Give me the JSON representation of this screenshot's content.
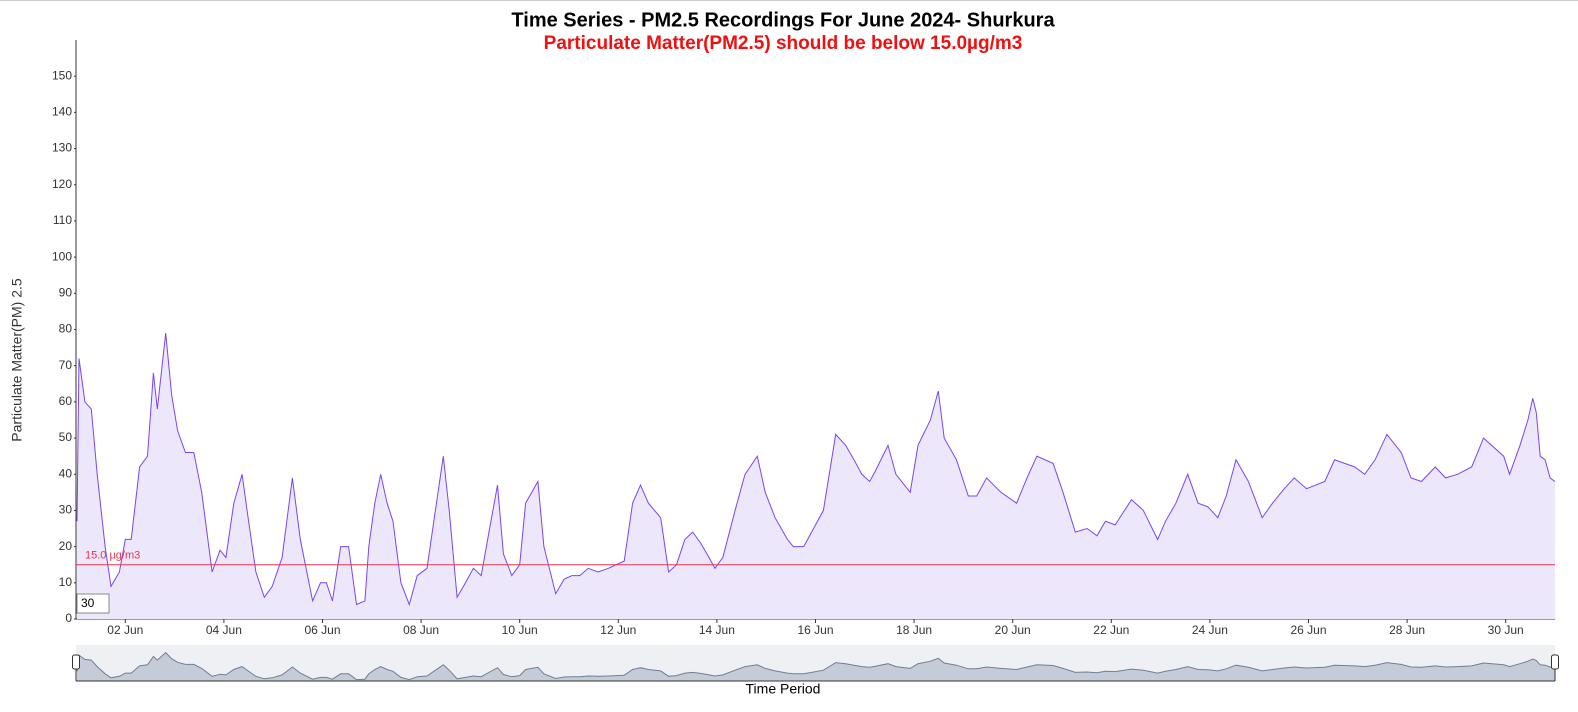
{
  "chart_data": {
    "type": "area",
    "title": "Time Series - PM2.5 Recordings For June 2024- Shurkura",
    "subtitle": "Particulate Matter(PM2.5) should be below 15.0µg/m3",
    "x_label": "Time Period",
    "y_label": "Particulate Matter(PM) 2.5",
    "zoom_input": "30",
    "threshold": {
      "value": 15,
      "label": "15.0 µg/m3",
      "color": "#e8344e"
    },
    "xlim": [
      1,
      31
    ],
    "xticks": [
      {
        "value": 2,
        "label": "02 Jun"
      },
      {
        "value": 4,
        "label": "04 Jun"
      },
      {
        "value": 6,
        "label": "06 Jun"
      },
      {
        "value": 8,
        "label": "08 Jun"
      },
      {
        "value": 10,
        "label": "10 Jun"
      },
      {
        "value": 12,
        "label": "12 Jun"
      },
      {
        "value": 14,
        "label": "14 Jun"
      },
      {
        "value": 16,
        "label": "16 Jun"
      },
      {
        "value": 18,
        "label": "18 Jun"
      },
      {
        "value": 20,
        "label": "20 Jun"
      },
      {
        "value": 22,
        "label": "22 Jun"
      },
      {
        "value": 24,
        "label": "24 Jun"
      },
      {
        "value": 26,
        "label": "26 Jun"
      },
      {
        "value": 28,
        "label": "28 Jun"
      },
      {
        "value": 30,
        "label": "30 Jun"
      }
    ],
    "ylim": [
      0,
      160
    ],
    "yticks": [
      0,
      10,
      20,
      30,
      40,
      50,
      60,
      70,
      80,
      90,
      100,
      110,
      120,
      130,
      140,
      150
    ],
    "series": [
      {
        "color": "#7b45f0",
        "fill": "#ede7fc",
        "x": [
          1.02,
          1.06,
          1.18,
          1.31,
          1.43,
          1.59,
          1.71,
          1.88,
          2.0,
          2.12,
          2.29,
          2.45,
          2.57,
          2.65,
          2.82,
          2.94,
          3.06,
          3.22,
          3.39,
          3.55,
          3.76,
          3.92,
          4.04,
          4.2,
          4.37,
          4.49,
          4.65,
          4.82,
          4.98,
          5.18,
          5.39,
          5.55,
          5.8,
          5.96,
          6.08,
          6.2,
          6.37,
          6.53,
          6.69,
          6.86,
          6.94,
          7.06,
          7.18,
          7.31,
          7.43,
          7.59,
          7.76,
          7.92,
          8.12,
          8.29,
          8.45,
          8.57,
          8.73,
          8.9,
          9.06,
          9.22,
          9.39,
          9.55,
          9.67,
          9.84,
          10.0,
          10.12,
          10.37,
          10.49,
          10.73,
          10.9,
          11.06,
          11.22,
          11.39,
          11.59,
          11.8,
          11.96,
          12.12,
          12.29,
          12.45,
          12.61,
          12.86,
          13.02,
          13.18,
          13.35,
          13.51,
          13.67,
          13.84,
          13.96,
          14.12,
          14.37,
          14.57,
          14.82,
          14.98,
          15.18,
          15.43,
          15.55,
          15.76,
          15.92,
          16.16,
          16.41,
          16.61,
          16.78,
          16.94,
          17.1,
          17.22,
          17.47,
          17.63,
          17.92,
          18.08,
          18.33,
          18.49,
          18.61,
          18.86,
          19.1,
          19.27,
          19.47,
          19.76,
          20.08,
          20.29,
          20.49,
          20.82,
          21.02,
          21.27,
          21.51,
          21.71,
          21.88,
          22.08,
          22.41,
          22.65,
          22.94,
          23.1,
          23.31,
          23.55,
          23.76,
          23.96,
          24.16,
          24.33,
          24.53,
          24.78,
          25.06,
          25.27,
          25.51,
          25.71,
          25.96,
          26.33,
          26.53,
          26.94,
          27.14,
          27.35,
          27.59,
          27.88,
          28.08,
          28.29,
          28.57,
          28.78,
          29.02,
          29.31,
          29.55,
          29.96,
          30.08,
          30.29,
          30.45,
          30.55,
          30.62,
          30.7,
          30.8,
          30.9,
          31.0
        ],
        "values": [
          27,
          72,
          60,
          58,
          40,
          20,
          9,
          13,
          22,
          22,
          42,
          45,
          68,
          58,
          79,
          62,
          52,
          46,
          46,
          35,
          13,
          19,
          17,
          32,
          40,
          28,
          13,
          6,
          9,
          17,
          39,
          22,
          5,
          10,
          10,
          5,
          20,
          20,
          4,
          5,
          20,
          32,
          40,
          32,
          27,
          10,
          4,
          12,
          14,
          30,
          45,
          30,
          6,
          10,
          14,
          12,
          25,
          37,
          18,
          12,
          15,
          32,
          38,
          20,
          7,
          11,
          12,
          12,
          14,
          13,
          14,
          15,
          16,
          32,
          37,
          32,
          28,
          13,
          15,
          22,
          24,
          21,
          17,
          14,
          17,
          30,
          40,
          45,
          35,
          28,
          22,
          20,
          20,
          24,
          30,
          51,
          48,
          44,
          40,
          38,
          41,
          48,
          40,
          35,
          48,
          55,
          63,
          50,
          44,
          34,
          34,
          39,
          35,
          32,
          39,
          45,
          43,
          35,
          24,
          25,
          23,
          27,
          26,
          33,
          30,
          22,
          27,
          32,
          40,
          32,
          31,
          28,
          34,
          44,
          38,
          28,
          32,
          36,
          39,
          36,
          38,
          44,
          42,
          40,
          44,
          51,
          46,
          39,
          38,
          42,
          39,
          40,
          42,
          50,
          45,
          40,
          48,
          55,
          61,
          57,
          45,
          44,
          39,
          38
        ]
      }
    ]
  }
}
